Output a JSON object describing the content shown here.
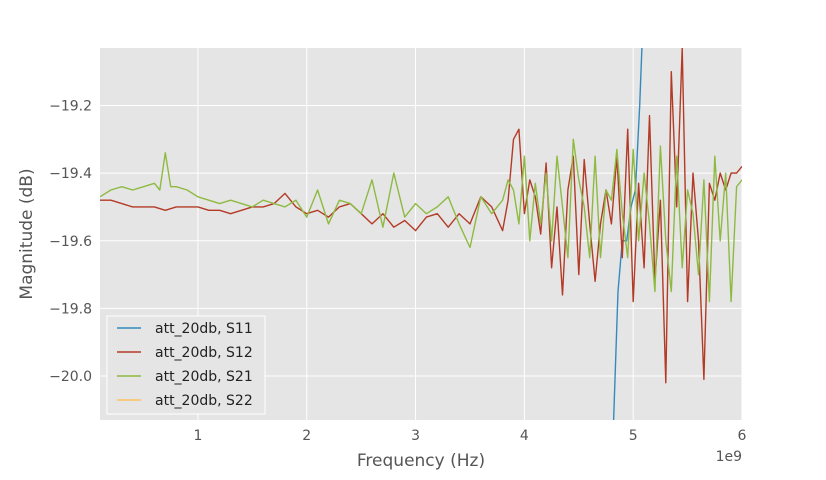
{
  "chart_data": {
    "type": "line",
    "title": "",
    "xlabel": "Frequency (Hz)",
    "ylabel": "Magnitude (dB)",
    "x_offset_text": "1e9",
    "xlim": [
      0.1,
      6.0
    ],
    "ylim": [
      -20.13,
      -19.03
    ],
    "x_ticks": [
      1,
      2,
      3,
      4,
      5,
      6
    ],
    "x_tick_labels": [
      "1",
      "2",
      "3",
      "4",
      "5",
      "6"
    ],
    "y_ticks": [
      -19.2,
      -19.4,
      -19.6,
      -19.8,
      -20.0
    ],
    "y_tick_labels": [
      "−19.2",
      "−19.4",
      "−19.6",
      "−19.8",
      "−20.0"
    ],
    "grid": true,
    "legend_position": "lower-left",
    "background": "#e5e5e5",
    "series": [
      {
        "name": "att_20db, S11",
        "color": "#348abd",
        "x": [
          4.82,
          4.86,
          4.9,
          4.94,
          4.98,
          5.02,
          5.06,
          5.08
        ],
        "y": [
          -20.13,
          -19.75,
          -19.6,
          -19.6,
          -19.5,
          -19.45,
          -19.2,
          -19.03
        ]
      },
      {
        "name": "att_20db, S12",
        "color": "#b33b26",
        "x": [
          0.1,
          0.2,
          0.3,
          0.4,
          0.5,
          0.6,
          0.7,
          0.8,
          0.9,
          1.0,
          1.1,
          1.2,
          1.3,
          1.4,
          1.5,
          1.6,
          1.7,
          1.8,
          1.9,
          2.0,
          2.1,
          2.2,
          2.3,
          2.4,
          2.5,
          2.6,
          2.7,
          2.8,
          2.9,
          3.0,
          3.1,
          3.2,
          3.3,
          3.4,
          3.5,
          3.6,
          3.7,
          3.8,
          3.85,
          3.9,
          3.95,
          4.0,
          4.05,
          4.1,
          4.15,
          4.2,
          4.25,
          4.3,
          4.35,
          4.4,
          4.45,
          4.5,
          4.55,
          4.6,
          4.65,
          4.7,
          4.75,
          4.8,
          4.85,
          4.9,
          4.95,
          5.0,
          5.05,
          5.1,
          5.15,
          5.2,
          5.25,
          5.3,
          5.35,
          5.4,
          5.45,
          5.5,
          5.55,
          5.6,
          5.65,
          5.7,
          5.75,
          5.8,
          5.85,
          5.9,
          5.95,
          6.0
        ],
        "y": [
          -19.48,
          -19.48,
          -19.49,
          -19.5,
          -19.5,
          -19.5,
          -19.51,
          -19.5,
          -19.5,
          -19.5,
          -19.51,
          -19.51,
          -19.52,
          -19.51,
          -19.5,
          -19.5,
          -19.49,
          -19.46,
          -19.5,
          -19.52,
          -19.51,
          -19.53,
          -19.5,
          -19.49,
          -19.52,
          -19.55,
          -19.52,
          -19.56,
          -19.54,
          -19.57,
          -19.53,
          -19.52,
          -19.56,
          -19.52,
          -19.55,
          -19.47,
          -19.5,
          -19.57,
          -19.48,
          -19.3,
          -19.27,
          -19.52,
          -19.42,
          -19.47,
          -19.58,
          -19.37,
          -19.68,
          -19.5,
          -19.76,
          -19.45,
          -19.35,
          -19.7,
          -19.36,
          -19.55,
          -19.72,
          -19.55,
          -19.45,
          -19.55,
          -19.35,
          -19.65,
          -19.27,
          -19.78,
          -19.43,
          -19.68,
          -19.23,
          -19.72,
          -19.48,
          -20.02,
          -19.1,
          -19.5,
          -19.03,
          -19.78,
          -19.4,
          -19.6,
          -20.01,
          -19.43,
          -19.48,
          -19.4,
          -19.45,
          -19.4,
          -19.4,
          -19.38
        ]
      },
      {
        "name": "att_20db, S21",
        "color": "#8eba42",
        "x": [
          0.1,
          0.2,
          0.3,
          0.4,
          0.5,
          0.6,
          0.65,
          0.7,
          0.75,
          0.8,
          0.9,
          1.0,
          1.1,
          1.2,
          1.3,
          1.4,
          1.5,
          1.6,
          1.7,
          1.8,
          1.9,
          2.0,
          2.1,
          2.2,
          2.3,
          2.4,
          2.5,
          2.6,
          2.7,
          2.8,
          2.9,
          3.0,
          3.1,
          3.2,
          3.3,
          3.4,
          3.5,
          3.6,
          3.7,
          3.8,
          3.85,
          3.9,
          3.95,
          4.0,
          4.05,
          4.1,
          4.15,
          4.2,
          4.25,
          4.3,
          4.35,
          4.4,
          4.45,
          4.5,
          4.55,
          4.6,
          4.65,
          4.7,
          4.75,
          4.8,
          4.85,
          4.9,
          4.95,
          5.0,
          5.05,
          5.1,
          5.15,
          5.2,
          5.25,
          5.3,
          5.35,
          5.4,
          5.45,
          5.5,
          5.55,
          5.6,
          5.65,
          5.7,
          5.75,
          5.8,
          5.85,
          5.9,
          5.95,
          6.0
        ],
        "y": [
          -19.47,
          -19.45,
          -19.44,
          -19.45,
          -19.44,
          -19.43,
          -19.45,
          -19.34,
          -19.44,
          -19.44,
          -19.45,
          -19.47,
          -19.48,
          -19.49,
          -19.48,
          -19.49,
          -19.5,
          -19.48,
          -19.49,
          -19.5,
          -19.48,
          -19.53,
          -19.45,
          -19.55,
          -19.48,
          -19.49,
          -19.52,
          -19.42,
          -19.56,
          -19.4,
          -19.53,
          -19.49,
          -19.52,
          -19.5,
          -19.47,
          -19.55,
          -19.62,
          -19.47,
          -19.52,
          -19.48,
          -19.42,
          -19.45,
          -19.55,
          -19.35,
          -19.6,
          -19.43,
          -19.55,
          -19.4,
          -19.6,
          -19.35,
          -19.5,
          -19.65,
          -19.3,
          -19.42,
          -19.5,
          -19.65,
          -19.35,
          -19.65,
          -19.45,
          -19.48,
          -19.33,
          -19.52,
          -19.65,
          -19.33,
          -19.6,
          -19.4,
          -19.55,
          -19.75,
          -19.32,
          -19.6,
          -19.75,
          -19.35,
          -19.68,
          -19.45,
          -19.52,
          -19.7,
          -19.42,
          -19.78,
          -19.35,
          -19.6,
          -19.4,
          -19.78,
          -19.44,
          -19.42
        ]
      },
      {
        "name": "att_20db, S22",
        "color": "#fbc15e",
        "x": [],
        "y": []
      }
    ]
  }
}
